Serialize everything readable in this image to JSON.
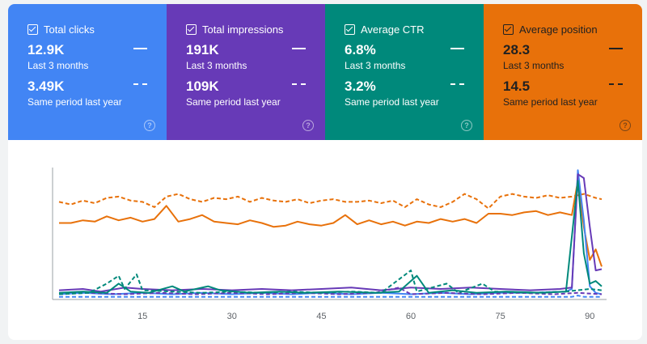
{
  "metrics": [
    {
      "label": "Total clicks",
      "value": "12.9K",
      "period": "Last 3 months",
      "compare_value": "3.49K",
      "compare_period": "Same period last year",
      "color": "#4285f4"
    },
    {
      "label": "Total impressions",
      "value": "191K",
      "period": "Last 3 months",
      "compare_value": "109K",
      "compare_period": "Same period last year",
      "color": "#673ab7"
    },
    {
      "label": "Average CTR",
      "value": "6.8%",
      "period": "Last 3 months",
      "compare_value": "3.2%",
      "compare_period": "Same period last year",
      "color": "#00897b"
    },
    {
      "label": "Average position",
      "value": "28.3",
      "period": "Last 3 months",
      "compare_value": "14.5",
      "compare_period": "Same period last year",
      "color": "#e8710a"
    }
  ],
  "help_glyph": "?",
  "icons": {
    "checkbox": "checkbox-checked-icon",
    "help": "help-circle-icon"
  },
  "chart_data": {
    "type": "line",
    "xlim": [
      1,
      92
    ],
    "ylim": [
      0,
      1
    ],
    "grid": false,
    "x_ticks": [
      15,
      30,
      45,
      60,
      75,
      90
    ],
    "x_ticks_labels": [
      "15",
      "30",
      "45",
      "60",
      "75",
      "90"
    ],
    "series": [
      {
        "metric": "Average position",
        "period": "current",
        "style": "solid",
        "color": "#e8710a",
        "points": [
          [
            1,
            0.58
          ],
          [
            3,
            0.58
          ],
          [
            5,
            0.6
          ],
          [
            7,
            0.59
          ],
          [
            9,
            0.63
          ],
          [
            11,
            0.6
          ],
          [
            13,
            0.62
          ],
          [
            15,
            0.59
          ],
          [
            17,
            0.61
          ],
          [
            19,
            0.71
          ],
          [
            21,
            0.59
          ],
          [
            23,
            0.61
          ],
          [
            25,
            0.64
          ],
          [
            27,
            0.59
          ],
          [
            29,
            0.58
          ],
          [
            31,
            0.57
          ],
          [
            33,
            0.6
          ],
          [
            35,
            0.58
          ],
          [
            37,
            0.55
          ],
          [
            39,
            0.56
          ],
          [
            41,
            0.59
          ],
          [
            43,
            0.57
          ],
          [
            45,
            0.56
          ],
          [
            47,
            0.58
          ],
          [
            49,
            0.64
          ],
          [
            51,
            0.57
          ],
          [
            53,
            0.6
          ],
          [
            55,
            0.57
          ],
          [
            57,
            0.59
          ],
          [
            59,
            0.56
          ],
          [
            61,
            0.59
          ],
          [
            63,
            0.58
          ],
          [
            65,
            0.61
          ],
          [
            67,
            0.59
          ],
          [
            69,
            0.61
          ],
          [
            71,
            0.58
          ],
          [
            73,
            0.65
          ],
          [
            75,
            0.65
          ],
          [
            77,
            0.64
          ],
          [
            79,
            0.66
          ],
          [
            81,
            0.67
          ],
          [
            83,
            0.64
          ],
          [
            85,
            0.66
          ],
          [
            87,
            0.64
          ],
          [
            88,
            0.9
          ],
          [
            89,
            0.55
          ],
          [
            90,
            0.3
          ],
          [
            91,
            0.38
          ],
          [
            92,
            0.25
          ]
        ]
      },
      {
        "metric": "Average position",
        "period": "previous",
        "style": "dashed",
        "color": "#e8710a",
        "points": [
          [
            1,
            0.74
          ],
          [
            3,
            0.72
          ],
          [
            5,
            0.75
          ],
          [
            7,
            0.73
          ],
          [
            9,
            0.77
          ],
          [
            11,
            0.78
          ],
          [
            13,
            0.75
          ],
          [
            15,
            0.74
          ],
          [
            17,
            0.7
          ],
          [
            19,
            0.78
          ],
          [
            21,
            0.8
          ],
          [
            23,
            0.76
          ],
          [
            25,
            0.74
          ],
          [
            27,
            0.77
          ],
          [
            29,
            0.76
          ],
          [
            31,
            0.78
          ],
          [
            33,
            0.74
          ],
          [
            35,
            0.77
          ],
          [
            37,
            0.75
          ],
          [
            39,
            0.74
          ],
          [
            41,
            0.76
          ],
          [
            43,
            0.73
          ],
          [
            45,
            0.75
          ],
          [
            47,
            0.76
          ],
          [
            49,
            0.74
          ],
          [
            51,
            0.74
          ],
          [
            53,
            0.75
          ],
          [
            55,
            0.73
          ],
          [
            57,
            0.75
          ],
          [
            59,
            0.7
          ],
          [
            61,
            0.76
          ],
          [
            63,
            0.72
          ],
          [
            65,
            0.7
          ],
          [
            67,
            0.74
          ],
          [
            69,
            0.8
          ],
          [
            71,
            0.76
          ],
          [
            73,
            0.69
          ],
          [
            75,
            0.78
          ],
          [
            77,
            0.8
          ],
          [
            79,
            0.78
          ],
          [
            81,
            0.77
          ],
          [
            83,
            0.79
          ],
          [
            85,
            0.77
          ],
          [
            87,
            0.78
          ],
          [
            89,
            0.8
          ],
          [
            91,
            0.77
          ],
          [
            92,
            0.76
          ]
        ]
      },
      {
        "metric": "Total clicks",
        "period": "current",
        "style": "solid",
        "color": "#4285f4",
        "points": [
          [
            1,
            0.04
          ],
          [
            5,
            0.05
          ],
          [
            10,
            0.04
          ],
          [
            15,
            0.05
          ],
          [
            20,
            0.04
          ],
          [
            25,
            0.05
          ],
          [
            30,
            0.04
          ],
          [
            35,
            0.05
          ],
          [
            40,
            0.04
          ],
          [
            45,
            0.05
          ],
          [
            50,
            0.04
          ],
          [
            55,
            0.05
          ],
          [
            60,
            0.04
          ],
          [
            65,
            0.05
          ],
          [
            70,
            0.04
          ],
          [
            75,
            0.05
          ],
          [
            80,
            0.05
          ],
          [
            86,
            0.06
          ],
          [
            87,
            0.08
          ],
          [
            88,
            0.98
          ],
          [
            89,
            0.6
          ],
          [
            90,
            0.1
          ],
          [
            91,
            0.05
          ],
          [
            92,
            0.04
          ]
        ]
      },
      {
        "metric": "Total clicks",
        "period": "previous",
        "style": "dashed",
        "color": "#4285f4",
        "points": [
          [
            1,
            0.02
          ],
          [
            10,
            0.02
          ],
          [
            20,
            0.02
          ],
          [
            30,
            0.02
          ],
          [
            40,
            0.02
          ],
          [
            50,
            0.02
          ],
          [
            60,
            0.02
          ],
          [
            70,
            0.02
          ],
          [
            80,
            0.02
          ],
          [
            87,
            0.02
          ],
          [
            88,
            0.03
          ],
          [
            89,
            0.02
          ],
          [
            92,
            0.02
          ]
        ]
      },
      {
        "metric": "Total impressions",
        "period": "current",
        "style": "solid",
        "color": "#673ab7",
        "points": [
          [
            1,
            0.07
          ],
          [
            5,
            0.08
          ],
          [
            8,
            0.06
          ],
          [
            12,
            0.09
          ],
          [
            15,
            0.08
          ],
          [
            20,
            0.07
          ],
          [
            25,
            0.08
          ],
          [
            30,
            0.07
          ],
          [
            35,
            0.08
          ],
          [
            40,
            0.07
          ],
          [
            45,
            0.08
          ],
          [
            50,
            0.09
          ],
          [
            55,
            0.07
          ],
          [
            60,
            0.09
          ],
          [
            65,
            0.08
          ],
          [
            70,
            0.09
          ],
          [
            75,
            0.08
          ],
          [
            80,
            0.07
          ],
          [
            85,
            0.08
          ],
          [
            87,
            0.09
          ],
          [
            88,
            0.95
          ],
          [
            89,
            0.92
          ],
          [
            90,
            0.55
          ],
          [
            91,
            0.22
          ],
          [
            92,
            0.23
          ]
        ]
      },
      {
        "metric": "Total impressions",
        "period": "previous",
        "style": "dashed",
        "color": "#673ab7",
        "points": [
          [
            1,
            0.04
          ],
          [
            6,
            0.05
          ],
          [
            12,
            0.04
          ],
          [
            18,
            0.05
          ],
          [
            24,
            0.04
          ],
          [
            30,
            0.05
          ],
          [
            36,
            0.04
          ],
          [
            42,
            0.05
          ],
          [
            48,
            0.04
          ],
          [
            54,
            0.05
          ],
          [
            58,
            0.09
          ],
          [
            60,
            0.04
          ],
          [
            66,
            0.05
          ],
          [
            72,
            0.04
          ],
          [
            78,
            0.05
          ],
          [
            84,
            0.04
          ],
          [
            88,
            0.05
          ],
          [
            92,
            0.04
          ]
        ]
      },
      {
        "metric": "Average CTR",
        "period": "current",
        "style": "solid",
        "color": "#00897b",
        "points": [
          [
            1,
            0.05
          ],
          [
            5,
            0.06
          ],
          [
            9,
            0.05
          ],
          [
            11,
            0.12
          ],
          [
            13,
            0.06
          ],
          [
            16,
            0.05
          ],
          [
            20,
            0.1
          ],
          [
            22,
            0.06
          ],
          [
            26,
            0.1
          ],
          [
            28,
            0.07
          ],
          [
            33,
            0.05
          ],
          [
            38,
            0.06
          ],
          [
            42,
            0.05
          ],
          [
            48,
            0.06
          ],
          [
            54,
            0.05
          ],
          [
            58,
            0.06
          ],
          [
            61,
            0.18
          ],
          [
            63,
            0.05
          ],
          [
            67,
            0.07
          ],
          [
            71,
            0.05
          ],
          [
            76,
            0.06
          ],
          [
            82,
            0.05
          ],
          [
            86,
            0.06
          ],
          [
            88,
            0.9
          ],
          [
            89,
            0.35
          ],
          [
            90,
            0.12
          ],
          [
            91,
            0.14
          ],
          [
            92,
            0.1
          ]
        ]
      },
      {
        "metric": "Average CTR",
        "period": "previous",
        "style": "dashed",
        "color": "#00897b",
        "points": [
          [
            1,
            0.04
          ],
          [
            6,
            0.05
          ],
          [
            9,
            0.12
          ],
          [
            11,
            0.18
          ],
          [
            12,
            0.08
          ],
          [
            14,
            0.19
          ],
          [
            15,
            0.07
          ],
          [
            20,
            0.06
          ],
          [
            25,
            0.05
          ],
          [
            30,
            0.06
          ],
          [
            35,
            0.05
          ],
          [
            40,
            0.06
          ],
          [
            45,
            0.05
          ],
          [
            50,
            0.06
          ],
          [
            55,
            0.05
          ],
          [
            60,
            0.22
          ],
          [
            61,
            0.06
          ],
          [
            66,
            0.12
          ],
          [
            68,
            0.05
          ],
          [
            72,
            0.12
          ],
          [
            74,
            0.06
          ],
          [
            80,
            0.05
          ],
          [
            86,
            0.06
          ],
          [
            88,
            0.07
          ],
          [
            90,
            0.08
          ],
          [
            92,
            0.07
          ]
        ]
      }
    ]
  }
}
